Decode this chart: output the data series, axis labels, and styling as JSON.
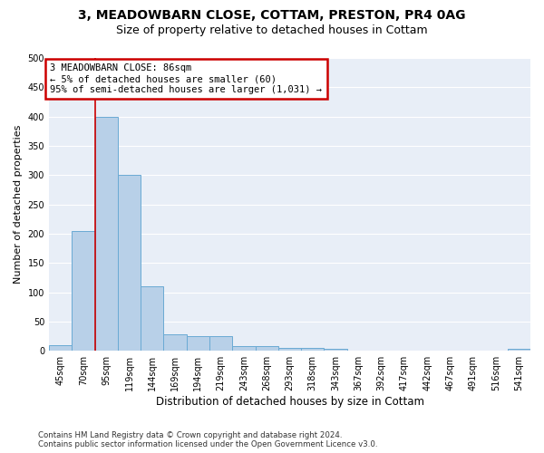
{
  "title1": "3, MEADOWBARN CLOSE, COTTAM, PRESTON, PR4 0AG",
  "title2": "Size of property relative to detached houses in Cottam",
  "xlabel": "Distribution of detached houses by size in Cottam",
  "ylabel": "Number of detached properties",
  "categories": [
    "45sqm",
    "70sqm",
    "95sqm",
    "119sqm",
    "144sqm",
    "169sqm",
    "194sqm",
    "219sqm",
    "243sqm",
    "268sqm",
    "293sqm",
    "318sqm",
    "343sqm",
    "367sqm",
    "392sqm",
    "417sqm",
    "442sqm",
    "467sqm",
    "491sqm",
    "516sqm",
    "541sqm"
  ],
  "values": [
    10,
    205,
    400,
    300,
    110,
    28,
    25,
    25,
    8,
    8,
    5,
    5,
    3,
    0,
    0,
    0,
    0,
    0,
    0,
    0,
    3
  ],
  "bar_color": "#b8d0e8",
  "bar_edge_color": "#6aaad4",
  "annotation_text_line1": "3 MEADOWBARN CLOSE: 86sqm",
  "annotation_text_line2": "← 5% of detached houses are smaller (60)",
  "annotation_text_line3": "95% of semi-detached houses are larger (1,031) →",
  "annotation_box_color": "#ffffff",
  "annotation_box_edge_color": "#cc0000",
  "vline_color": "#cc0000",
  "vline_x": 1.5,
  "ylim": [
    0,
    500
  ],
  "yticks": [
    0,
    50,
    100,
    150,
    200,
    250,
    300,
    350,
    400,
    450,
    500
  ],
  "bg_color": "#e8eef7",
  "footnote": "Contains HM Land Registry data © Crown copyright and database right 2024.\nContains public sector information licensed under the Open Government Licence v3.0.",
  "title_fontsize": 10,
  "subtitle_fontsize": 9,
  "tick_fontsize": 7,
  "ylabel_fontsize": 8,
  "xlabel_fontsize": 8.5,
  "annot_fontsize": 7.5
}
